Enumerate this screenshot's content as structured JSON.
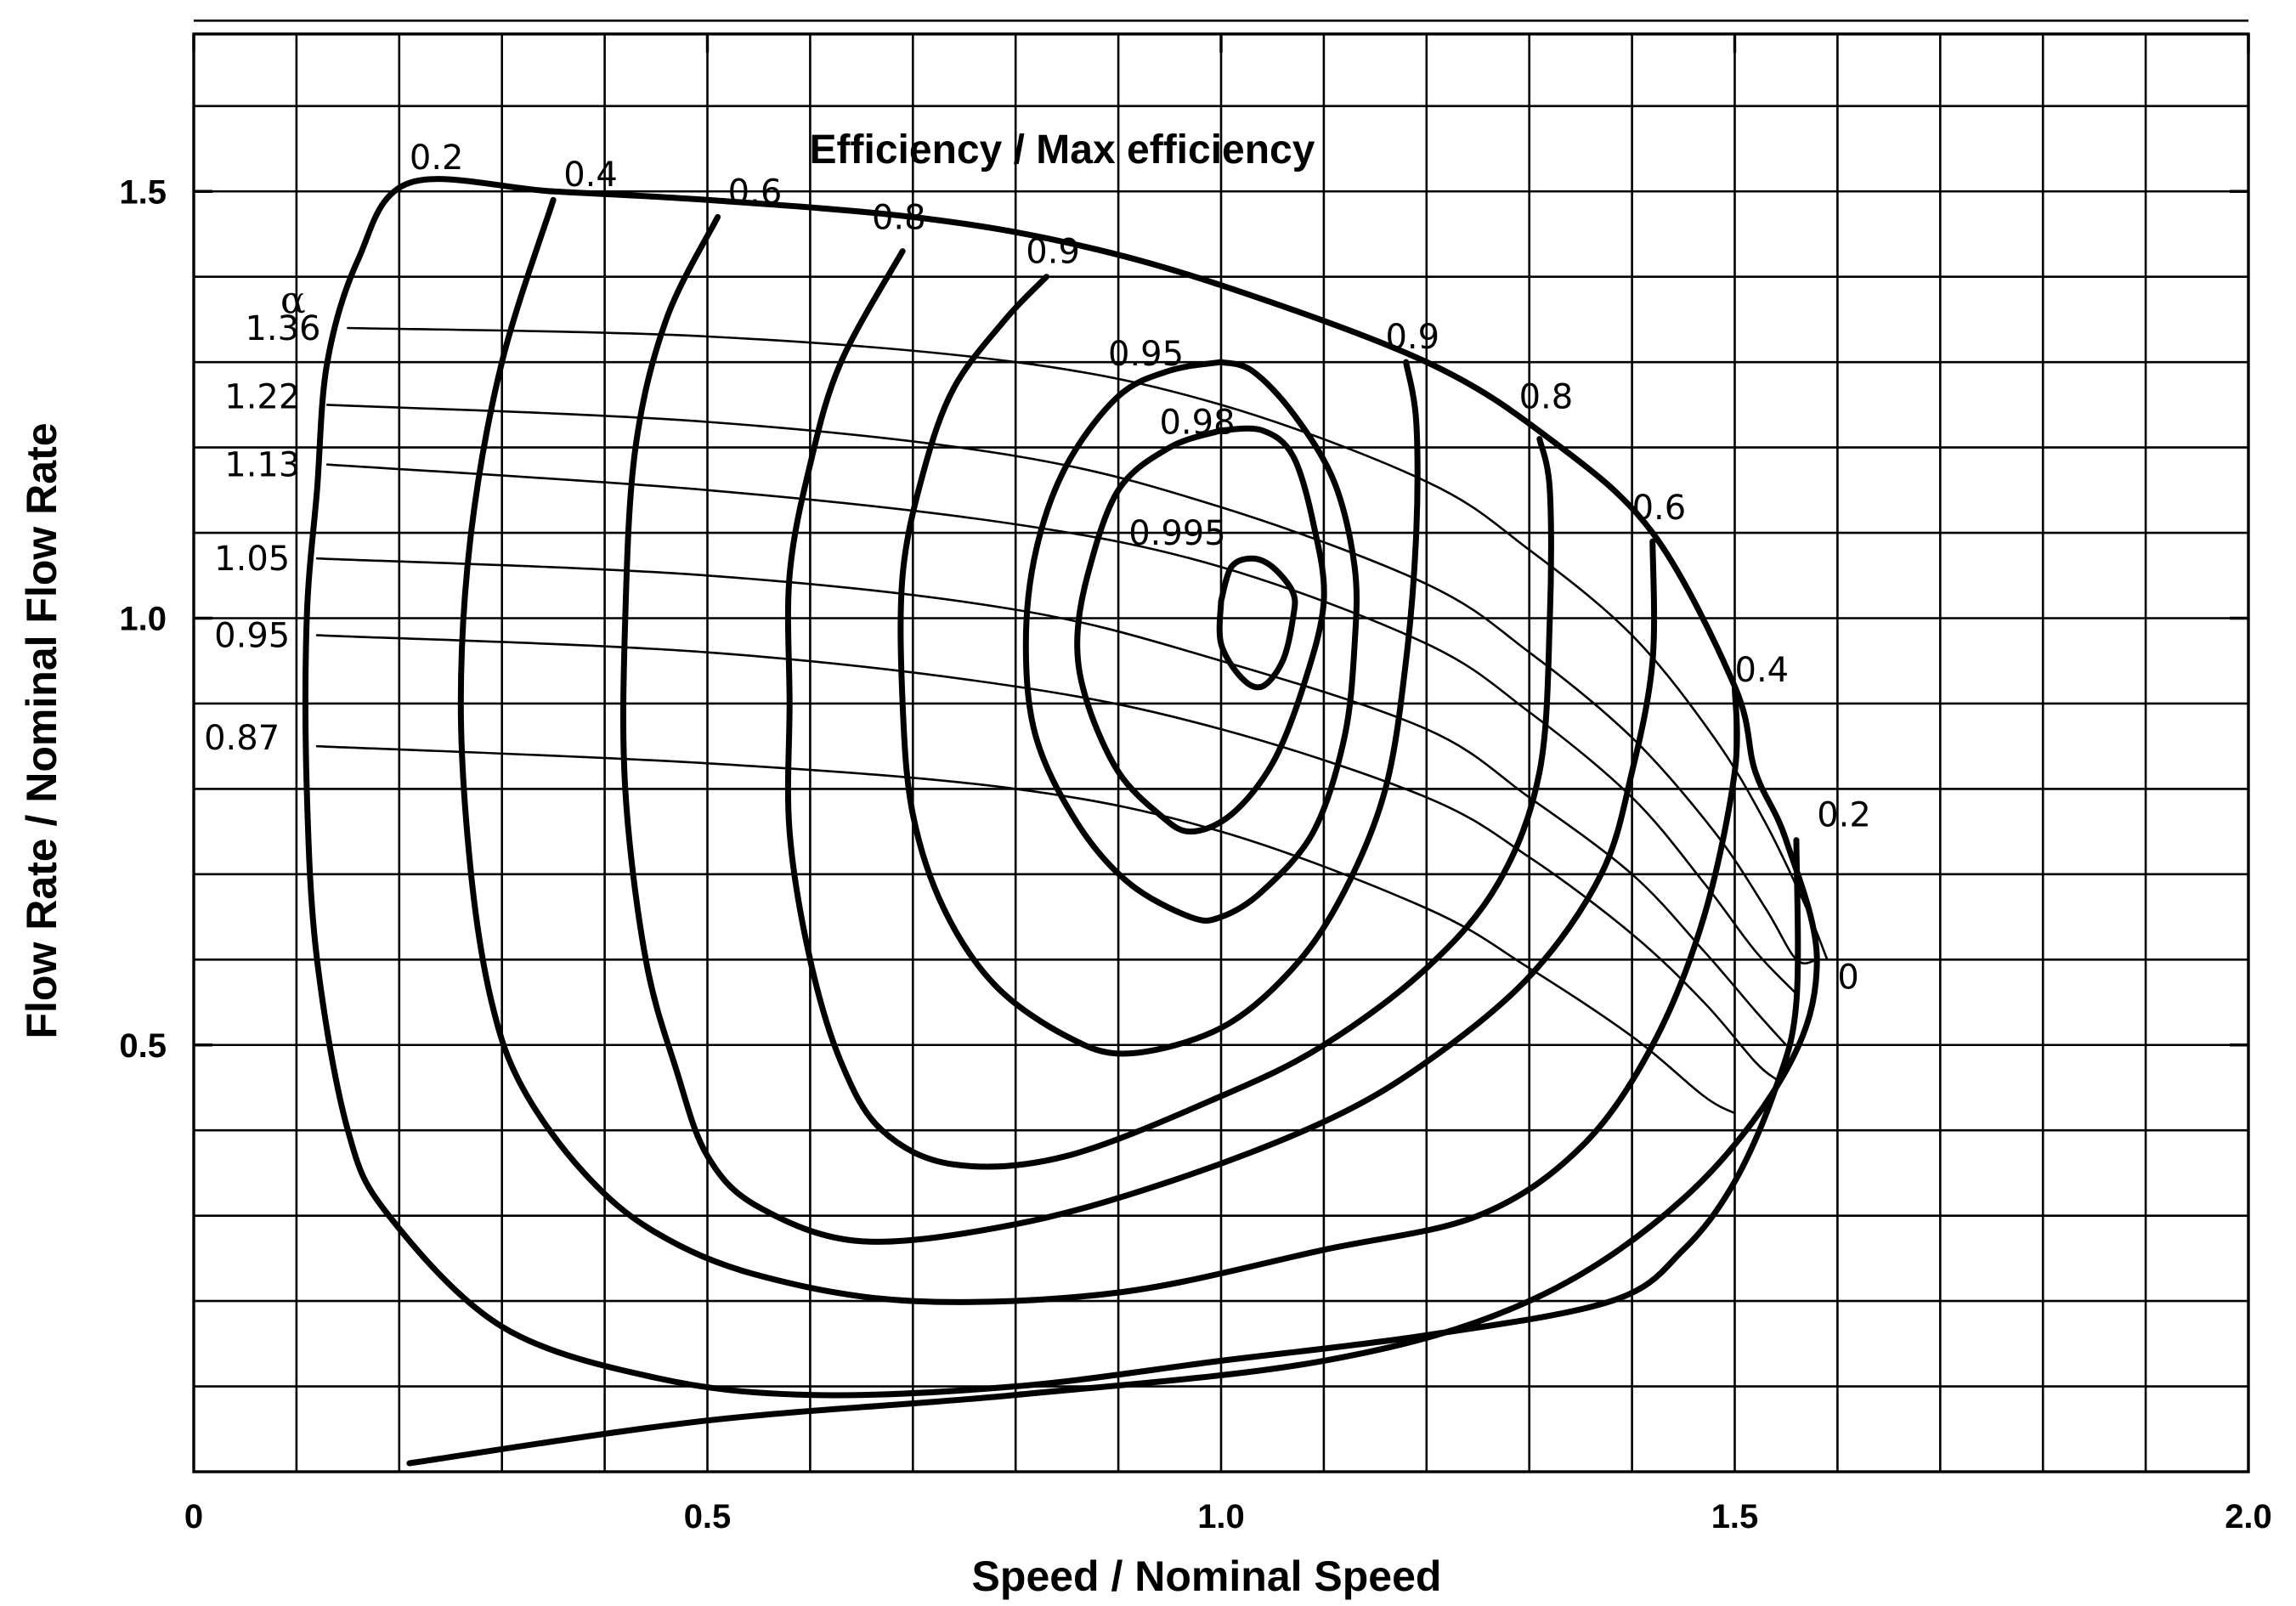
{
  "chart_data": {
    "type": "line",
    "title": "Efficiency / Max efficiency",
    "xlabel": "Speed / Nominal Speed",
    "ylabel": "Flow Rate / Nominal Flow Rate",
    "xlim": [
      0,
      2.0
    ],
    "ylim": [
      0,
      1.72
    ],
    "xticks": [
      {
        "value": 0,
        "label": "0"
      },
      {
        "value": 0.5,
        "label": "0.5"
      },
      {
        "value": 1.0,
        "label": "1.0"
      },
      {
        "value": 1.5,
        "label": "1.5"
      },
      {
        "value": 2.0,
        "label": "2.0"
      }
    ],
    "yticks": [
      {
        "value": 0.5,
        "label": "0.5"
      },
      {
        "value": 1.0,
        "label": "1.0"
      },
      {
        "value": 1.5,
        "label": "1.5"
      }
    ],
    "grid": {
      "x_step": 0.1,
      "y_step": 0.1,
      "y_first": 0.1
    },
    "alpha_symbol": "α",
    "efficiency_curves": [
      {
        "name": "eff-0.2",
        "label": "0.2",
        "label_at": [
          0.21,
          1.54
        ],
        "points": [
          [
            0.21,
            0.01
          ],
          [
            0.5,
            0.06
          ],
          [
            0.8,
            0.09
          ],
          [
            1.1,
            0.13
          ],
          [
            1.3,
            0.2
          ],
          [
            1.45,
            0.32
          ],
          [
            1.55,
            0.47
          ],
          [
            1.58,
            0.6
          ],
          [
            1.55,
            0.74
          ],
          [
            1.52,
            0.82
          ],
          [
            1.5,
            0.92
          ],
          [
            1.42,
            1.1
          ],
          [
            1.32,
            1.21
          ],
          [
            1.2,
            1.3
          ],
          [
            1.0,
            1.39
          ],
          [
            0.85,
            1.44
          ],
          [
            0.7,
            1.47
          ],
          [
            0.5,
            1.49
          ],
          [
            0.35,
            1.5
          ],
          [
            0.21,
            1.51
          ],
          [
            0.16,
            1.42
          ],
          [
            0.13,
            1.3
          ],
          [
            0.12,
            1.15
          ],
          [
            0.11,
            1.0
          ],
          [
            0.11,
            0.8
          ],
          [
            0.12,
            0.6
          ],
          [
            0.15,
            0.4
          ],
          [
            0.19,
            0.3
          ],
          [
            0.3,
            0.17
          ],
          [
            0.45,
            0.11
          ],
          [
            0.6,
            0.09
          ],
          [
            0.8,
            0.1
          ],
          [
            1.0,
            0.13
          ],
          [
            1.2,
            0.16
          ],
          [
            1.38,
            0.2
          ],
          [
            1.45,
            0.26
          ],
          [
            1.5,
            0.34
          ],
          [
            1.54,
            0.45
          ],
          [
            1.56,
            0.55
          ],
          [
            1.56,
            0.74
          ]
        ]
      },
      {
        "name": "eff-0.4",
        "label": "0.4",
        "label_at": [
          0.36,
          1.52
        ],
        "points": [
          [
            0.35,
            1.49
          ],
          [
            0.3,
            1.3
          ],
          [
            0.27,
            1.1
          ],
          [
            0.26,
            0.9
          ],
          [
            0.27,
            0.7
          ],
          [
            0.29,
            0.55
          ],
          [
            0.32,
            0.45
          ],
          [
            0.38,
            0.35
          ],
          [
            0.45,
            0.28
          ],
          [
            0.55,
            0.23
          ],
          [
            0.7,
            0.2
          ],
          [
            0.9,
            0.21
          ],
          [
            1.1,
            0.26
          ],
          [
            1.25,
            0.3
          ],
          [
            1.35,
            0.38
          ],
          [
            1.42,
            0.5
          ],
          [
            1.47,
            0.65
          ],
          [
            1.5,
            0.82
          ],
          [
            1.5,
            0.92
          ]
        ]
      },
      {
        "name": "eff-0.6",
        "label": "0.6",
        "label_at": [
          0.52,
          1.5
        ],
        "points": [
          [
            0.51,
            1.47
          ],
          [
            0.46,
            1.35
          ],
          [
            0.43,
            1.2
          ],
          [
            0.42,
            1.0
          ],
          [
            0.42,
            0.8
          ],
          [
            0.44,
            0.6
          ],
          [
            0.47,
            0.47
          ],
          [
            0.5,
            0.37
          ],
          [
            0.55,
            0.31
          ],
          [
            0.65,
            0.27
          ],
          [
            0.8,
            0.29
          ],
          [
            0.95,
            0.34
          ],
          [
            1.1,
            0.41
          ],
          [
            1.2,
            0.48
          ],
          [
            1.3,
            0.58
          ],
          [
            1.37,
            0.7
          ],
          [
            1.4,
            0.82
          ],
          [
            1.42,
            0.95
          ],
          [
            1.42,
            1.09
          ]
        ]
      },
      {
        "name": "eff-0.8",
        "label": "0.8",
        "label_at": [
          0.66,
          1.47
        ],
        "points": [
          [
            0.69,
            1.43
          ],
          [
            0.63,
            1.3
          ],
          [
            0.6,
            1.18
          ],
          [
            0.58,
            1.05
          ],
          [
            0.58,
            0.9
          ],
          [
            0.58,
            0.75
          ],
          [
            0.6,
            0.6
          ],
          [
            0.63,
            0.48
          ],
          [
            0.67,
            0.4
          ],
          [
            0.74,
            0.36
          ],
          [
            0.85,
            0.37
          ],
          [
            1.0,
            0.44
          ],
          [
            1.1,
            0.5
          ],
          [
            1.2,
            0.59
          ],
          [
            1.27,
            0.69
          ],
          [
            1.31,
            0.82
          ],
          [
            1.32,
            1.0
          ],
          [
            1.32,
            1.15
          ],
          [
            1.31,
            1.21
          ]
        ]
      },
      {
        "name": "eff-0.9",
        "label": "0.9",
        "label_at": [
          0.81,
          1.43
        ],
        "points": [
          [
            0.83,
            1.4
          ],
          [
            0.79,
            1.35
          ],
          [
            0.74,
            1.27
          ],
          [
            0.71,
            1.17
          ],
          [
            0.69,
            1.05
          ],
          [
            0.69,
            0.9
          ],
          [
            0.7,
            0.77
          ],
          [
            0.73,
            0.66
          ],
          [
            0.78,
            0.57
          ],
          [
            0.85,
            0.51
          ],
          [
            0.91,
            0.49
          ],
          [
            1.0,
            0.52
          ],
          [
            1.07,
            0.59
          ],
          [
            1.12,
            0.68
          ],
          [
            1.16,
            0.8
          ],
          [
            1.18,
            0.95
          ],
          [
            1.19,
            1.1
          ],
          [
            1.19,
            1.23
          ],
          [
            1.18,
            1.3
          ]
        ]
      },
      {
        "name": "eff-0.95",
        "label": "0.95",
        "label_at": [
          0.89,
          1.31
        ],
        "points": [
          [
            1.0,
            1.3
          ],
          [
            0.95,
            1.29
          ],
          [
            0.9,
            1.26
          ],
          [
            0.85,
            1.18
          ],
          [
            0.82,
            1.08
          ],
          [
            0.81,
            0.97
          ],
          [
            0.82,
            0.86
          ],
          [
            0.86,
            0.76
          ],
          [
            0.91,
            0.69
          ],
          [
            0.97,
            0.65
          ],
          [
            1.0,
            0.65
          ],
          [
            1.04,
            0.68
          ],
          [
            1.09,
            0.75
          ],
          [
            1.12,
            0.86
          ],
          [
            1.13,
            0.97
          ],
          [
            1.13,
            1.06
          ],
          [
            1.11,
            1.16
          ],
          [
            1.07,
            1.24
          ],
          [
            1.03,
            1.29
          ],
          [
            1.0,
            1.3
          ]
        ]
      },
      {
        "name": "eff-0.98",
        "label": "0.98",
        "label_at": [
          0.94,
          1.23
        ],
        "points": [
          [
            1.0,
            1.22
          ],
          [
            0.95,
            1.2
          ],
          [
            0.9,
            1.15
          ],
          [
            0.87,
            1.05
          ],
          [
            0.86,
            0.97
          ],
          [
            0.87,
            0.9
          ],
          [
            0.9,
            0.82
          ],
          [
            0.94,
            0.77
          ],
          [
            0.97,
            0.75
          ],
          [
            1.01,
            0.77
          ],
          [
            1.05,
            0.83
          ],
          [
            1.08,
            0.92
          ],
          [
            1.1,
            1.02
          ],
          [
            1.09,
            1.11
          ],
          [
            1.07,
            1.19
          ],
          [
            1.04,
            1.22
          ],
          [
            1.0,
            1.22
          ]
        ]
      },
      {
        "name": "eff-0.995",
        "label": "0.995",
        "label_at": [
          0.91,
          1.1
        ],
        "points": [
          [
            1.0,
            1.02
          ],
          [
            1.0,
            0.97
          ],
          [
            1.02,
            0.93
          ],
          [
            1.04,
            0.92
          ],
          [
            1.06,
            0.95
          ],
          [
            1.07,
            1.0
          ],
          [
            1.07,
            1.03
          ],
          [
            1.05,
            1.06
          ],
          [
            1.03,
            1.07
          ],
          [
            1.01,
            1.06
          ],
          [
            1.0,
            1.02
          ]
        ]
      }
    ],
    "alpha_curves": [
      {
        "name": "alpha-1.36",
        "label": "1.36",
        "label_at": [
          0.05,
          1.34
        ],
        "points": [
          [
            0.15,
            1.34
          ],
          [
            0.5,
            1.33
          ],
          [
            0.8,
            1.3
          ],
          [
            1.0,
            1.25
          ],
          [
            1.2,
            1.16
          ],
          [
            1.3,
            1.08
          ],
          [
            1.4,
            0.98
          ],
          [
            1.48,
            0.86
          ],
          [
            1.53,
            0.76
          ],
          [
            1.57,
            0.66
          ],
          [
            1.59,
            0.6
          ]
        ]
      },
      {
        "name": "alpha-1.22",
        "label": "1.22",
        "label_at": [
          0.03,
          1.26
        ],
        "points": [
          [
            0.13,
            1.25
          ],
          [
            0.5,
            1.23
          ],
          [
            0.8,
            1.19
          ],
          [
            1.0,
            1.13
          ],
          [
            1.2,
            1.04
          ],
          [
            1.3,
            0.96
          ],
          [
            1.4,
            0.86
          ],
          [
            1.48,
            0.75
          ],
          [
            1.53,
            0.66
          ],
          [
            1.56,
            0.6
          ],
          [
            1.58,
            0.6
          ]
        ]
      },
      {
        "name": "alpha-1.13",
        "label": "1.13",
        "label_at": [
          0.03,
          1.18
        ],
        "points": [
          [
            0.13,
            1.18
          ],
          [
            0.5,
            1.15
          ],
          [
            0.8,
            1.11
          ],
          [
            1.0,
            1.06
          ],
          [
            1.2,
            0.97
          ],
          [
            1.3,
            0.89
          ],
          [
            1.4,
            0.79
          ],
          [
            1.47,
            0.69
          ],
          [
            1.52,
            0.61
          ],
          [
            1.56,
            0.56
          ]
        ]
      },
      {
        "name": "alpha-1.05",
        "label": "1.05",
        "label_at": [
          0.02,
          1.07
        ],
        "points": [
          [
            0.12,
            1.07
          ],
          [
            0.5,
            1.05
          ],
          [
            0.8,
            1.01
          ],
          [
            1.0,
            0.95
          ],
          [
            1.2,
            0.87
          ],
          [
            1.3,
            0.79
          ],
          [
            1.4,
            0.7
          ],
          [
            1.47,
            0.61
          ],
          [
            1.52,
            0.54
          ],
          [
            1.55,
            0.5
          ]
        ]
      },
      {
        "name": "alpha-0.95",
        "label": "0.95",
        "label_at": [
          0.02,
          0.98
        ],
        "points": [
          [
            0.12,
            0.98
          ],
          [
            0.5,
            0.96
          ],
          [
            0.8,
            0.92
          ],
          [
            1.0,
            0.87
          ],
          [
            1.2,
            0.79
          ],
          [
            1.3,
            0.72
          ],
          [
            1.4,
            0.63
          ],
          [
            1.47,
            0.55
          ],
          [
            1.52,
            0.48
          ],
          [
            1.54,
            0.46
          ]
        ]
      },
      {
        "name": "alpha-0.87",
        "label": "0.87",
        "label_at": [
          0.01,
          0.86
        ],
        "points": [
          [
            0.12,
            0.85
          ],
          [
            0.5,
            0.83
          ],
          [
            0.8,
            0.8
          ],
          [
            1.0,
            0.75
          ],
          [
            1.2,
            0.66
          ],
          [
            1.3,
            0.59
          ],
          [
            1.4,
            0.51
          ],
          [
            1.47,
            0.44
          ],
          [
            1.5,
            0.42
          ]
        ]
      }
    ],
    "side_labels": [
      {
        "name": "label-0.9-right",
        "text": "0.9",
        "at": [
          1.16,
          1.33
        ]
      },
      {
        "name": "label-0.8-right",
        "text": "0.8",
        "at": [
          1.29,
          1.26
        ]
      },
      {
        "name": "label-0.6-right",
        "text": "0.6",
        "at": [
          1.4,
          1.13
        ]
      },
      {
        "name": "label-0.4-right",
        "text": "0.4",
        "at": [
          1.5,
          0.94
        ]
      },
      {
        "name": "label-0.2-right",
        "text": "0.2",
        "at": [
          1.58,
          0.77
        ]
      },
      {
        "name": "label-0-right",
        "text": "0",
        "at": [
          1.6,
          0.58
        ]
      }
    ]
  }
}
